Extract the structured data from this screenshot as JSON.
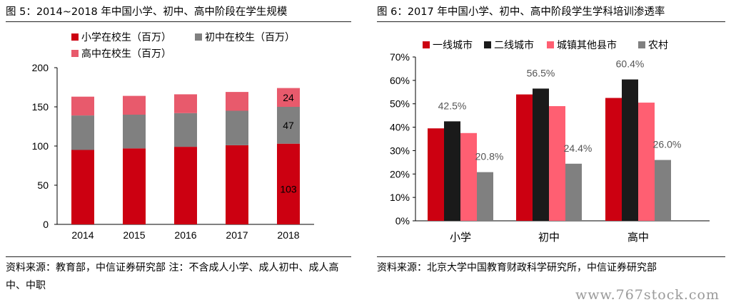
{
  "watermark": "www.767stock.com",
  "left": {
    "title": "图 5：2014~2018 年中国小学、初中、高中阶段在学生规模",
    "source": "资料来源：教育部，中信证券研究部 注：不含成人小学、成人初中、成人高中、中职",
    "chart_data": {
      "type": "bar",
      "stacked": true,
      "categories": [
        "2014",
        "2015",
        "2016",
        "2017",
        "2018"
      ],
      "series": [
        {
          "name": "小学在校生（百万）",
          "color": "#cc0011",
          "values": [
            95,
            97,
            99,
            101,
            103
          ]
        },
        {
          "name": "初中在校生（百万）",
          "color": "#808080",
          "values": [
            44,
            43,
            43,
            44,
            47
          ]
        },
        {
          "name": "高中在校生（百万）",
          "color": "#e85a6c",
          "values": [
            24,
            24,
            24,
            24,
            24
          ]
        }
      ],
      "data_labels": [
        "24",
        "47",
        "103"
      ],
      "ylim": [
        0,
        200
      ],
      "yticks": [
        "0",
        "50",
        "100",
        "150",
        "200"
      ],
      "legend": "top"
    }
  },
  "right": {
    "title": "图 6：2017 年中国小学、初中、高中阶段学生学科培训渗透率",
    "source": "资料来源：北京大学中国教育财政科学研究所，中信证券研究部",
    "chart_data": {
      "type": "bar",
      "categories": [
        "小学",
        "初中",
        "高中"
      ],
      "series": [
        {
          "name": "一线城市",
          "color": "#cc0011",
          "values": [
            39.5,
            54.0,
            52.5
          ]
        },
        {
          "name": "二线城市",
          "color": "#1a1a1a",
          "values": [
            42.5,
            56.5,
            60.4
          ]
        },
        {
          "name": "城镇其他县市",
          "color": "#ff5f72",
          "values": [
            37.5,
            49.0,
            50.5
          ]
        },
        {
          "name": "农村",
          "color": "#808080",
          "values": [
            20.8,
            24.4,
            26.0
          ]
        }
      ],
      "data_labels_dark": [
        "42.5%",
        "56.5%",
        "60.4%"
      ],
      "data_labels_rural": [
        "20.8%",
        "24.4%",
        "26.0%"
      ],
      "ylim": [
        0,
        70
      ],
      "yticks": [
        "0%",
        "10%",
        "20%",
        "30%",
        "40%",
        "50%",
        "60%",
        "70%"
      ],
      "legend": "top"
    }
  }
}
